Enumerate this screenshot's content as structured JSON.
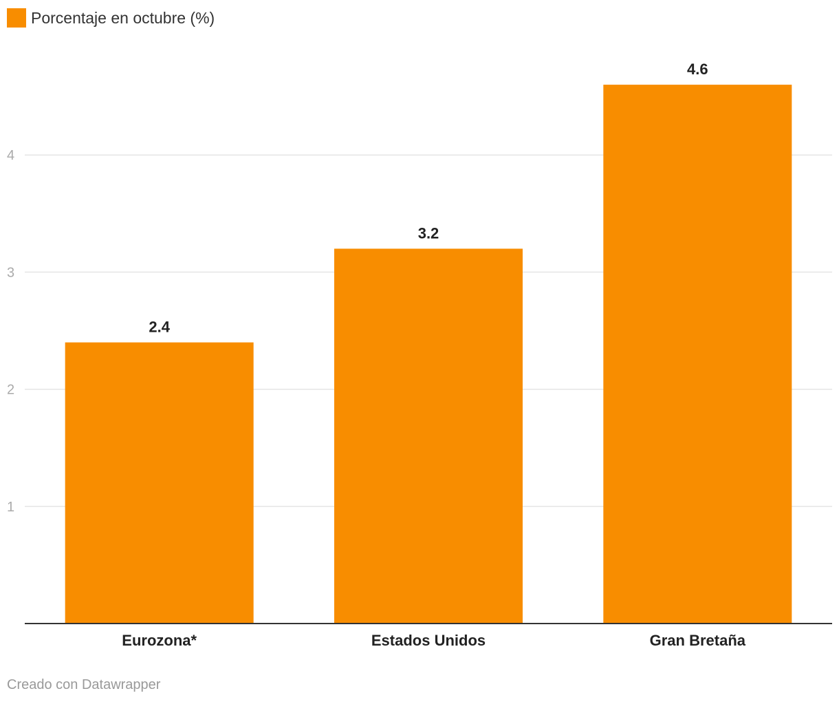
{
  "legend": {
    "label": "Porcentaje en octubre (%)",
    "color": "#f88d00"
  },
  "footer": {
    "credit": "Creado con Datawrapper"
  },
  "chart_data": {
    "type": "bar",
    "categories": [
      "Eurozona*",
      "Estados Unidos",
      "Gran Bretaña"
    ],
    "series": [
      {
        "name": "Porcentaje en octubre (%)",
        "values": [
          2.4,
          3.2,
          4.6
        ]
      }
    ],
    "value_labels": [
      "2.4",
      "3.2",
      "4.6"
    ],
    "yticks": [
      1,
      2,
      3,
      4
    ],
    "ylim": [
      0,
      4.6
    ],
    "grid": true,
    "legend_position": "top-left",
    "colors": {
      "bar": "#f88d00",
      "grid": "#e5e5e5",
      "axis": "#333333"
    }
  }
}
